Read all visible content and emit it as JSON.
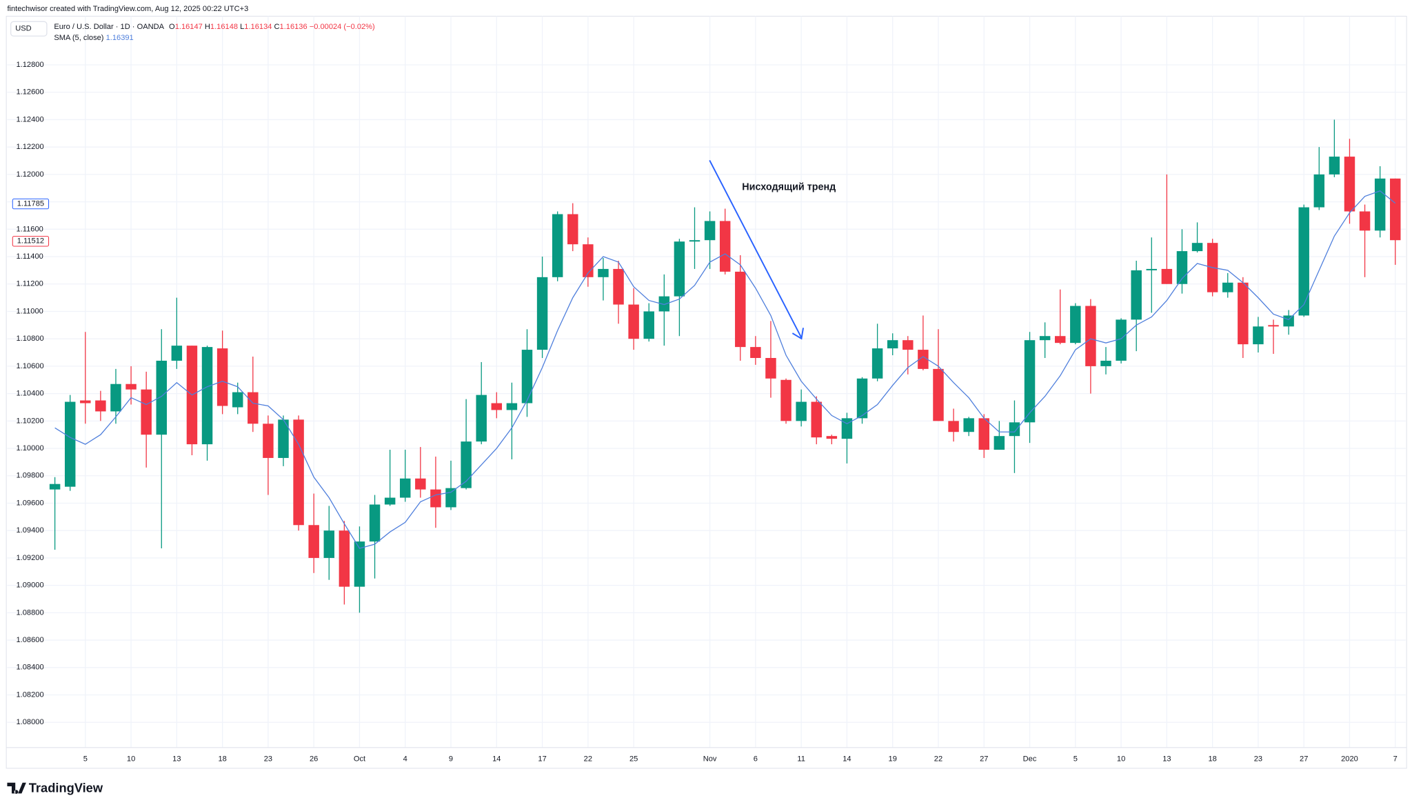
{
  "header": {
    "credit": "fintechwisor created with TradingView.com, Aug 12, 2025 00:22 UTC+3",
    "currency": "USD",
    "symbol": "Euro / U.S. Dollar · 1D · OANDA",
    "ohlc": [
      {
        "key": "O",
        "value": "1.16147"
      },
      {
        "key": "H",
        "value": "1.16148"
      },
      {
        "key": "L",
        "value": "1.16134"
      },
      {
        "key": "C",
        "value": "1.16136"
      }
    ],
    "change": "−0.00024 (−0.02%)"
  },
  "chart_data": {
    "type": "candlestick",
    "annotation": "Нисходящий тренд",
    "categories": [
      null,
      null,
      "5",
      null,
      null,
      "10",
      null,
      null,
      "13",
      null,
      null,
      "18",
      null,
      null,
      "23",
      null,
      null,
      "26",
      null,
      null,
      "Oct",
      null,
      null,
      "4",
      null,
      null,
      "9",
      null,
      null,
      "14",
      null,
      null,
      "17",
      null,
      null,
      "22",
      null,
      null,
      "25",
      null,
      null,
      null,
      null,
      "Nov",
      null,
      null,
      "6",
      null,
      null,
      "11",
      null,
      null,
      "14",
      null,
      null,
      "19",
      null,
      null,
      "22",
      null,
      null,
      "27",
      null,
      null,
      "Dec",
      null,
      null,
      "5",
      null,
      null,
      "10",
      null,
      null,
      "13",
      null,
      null,
      "18",
      null,
      null,
      "23",
      null,
      null,
      "27",
      null,
      null,
      "2020",
      null,
      null,
      "7"
    ],
    "open": [
      1.097,
      1.0972,
      1.1035,
      1.1035,
      1.1027,
      1.1047,
      1.1043,
      1.101,
      1.1064,
      1.1075,
      1.1003,
      1.1073,
      1.103,
      1.1041,
      1.1018,
      1.0993,
      1.1021,
      1.0944,
      1.092,
      1.094,
      1.0899,
      1.0932,
      1.0959,
      1.0964,
      1.0978,
      1.097,
      1.0957,
      1.0971,
      1.1005,
      1.1033,
      1.1028,
      1.1033,
      1.1072,
      1.1125,
      1.1171,
      1.1149,
      1.1125,
      1.1131,
      1.1105,
      1.108,
      1.11,
      1.1111,
      1.1151,
      1.1152,
      1.1166,
      1.1129,
      1.1074,
      1.1066,
      1.105,
      1.102,
      1.1034,
      1.1009,
      1.1007,
      1.1022,
      1.1051,
      1.1073,
      1.1079,
      1.1072,
      1.1058,
      1.102,
      1.1012,
      1.1022,
      1.0999,
      1.1009,
      1.1019,
      1.1079,
      1.1082,
      1.1077,
      1.1104,
      1.106,
      1.1064,
      1.1094,
      1.113,
      1.1131,
      1.112,
      1.1144,
      1.115,
      1.1114,
      1.1121,
      1.1076,
      1.109,
      1.1089,
      1.1097,
      1.1176,
      1.12,
      1.1213,
      1.1173,
      1.1159,
      1.1197
    ],
    "high": [
      1.0979,
      1.1039,
      1.1085,
      1.1042,
      1.1058,
      1.106,
      1.1056,
      1.1087,
      1.111,
      1.1075,
      1.1075,
      1.1086,
      1.1048,
      1.1067,
      1.1024,
      1.1024,
      1.1024,
      1.0967,
      1.0958,
      1.0947,
      1.0943,
      1.0966,
      1.0999,
      1.0999,
      1.1001,
      1.0994,
      1.0991,
      1.1036,
      1.1063,
      1.1041,
      1.1048,
      1.1087,
      1.114,
      1.1173,
      1.1179,
      1.1154,
      1.1139,
      1.1137,
      1.1117,
      1.1106,
      1.1127,
      1.1153,
      1.1176,
      1.1173,
      1.1175,
      1.1141,
      1.1082,
      1.1093,
      1.1051,
      1.1043,
      1.1038,
      1.101,
      1.1026,
      1.1052,
      1.1091,
      1.1084,
      1.1082,
      1.1097,
      1.1087,
      1.1029,
      1.1023,
      1.1025,
      1.102,
      1.1035,
      1.1085,
      1.1092,
      1.1116,
      1.1106,
      1.1109,
      1.1074,
      1.1095,
      1.1137,
      1.1154,
      1.12,
      1.116,
      1.1165,
      1.1153,
      1.1128,
      1.1125,
      1.1096,
      1.1094,
      1.1101,
      1.1178,
      1.122,
      1.124,
      1.1226,
      1.1178,
      1.1206,
      1.1197
    ],
    "low": [
      1.0926,
      1.0969,
      1.1018,
      1.102,
      1.1018,
      1.1032,
      1.0986,
      1.0927,
      1.1058,
      1.0995,
      1.0991,
      1.1025,
      1.1025,
      1.1012,
      1.0966,
      1.0987,
      1.094,
      1.0909,
      1.0904,
      1.0886,
      1.088,
      1.0905,
      1.0958,
      1.0961,
      1.0964,
      1.0942,
      1.0955,
      1.097,
      1.1003,
      1.1022,
      1.0992,
      1.1023,
      1.1066,
      1.1122,
      1.1144,
      1.1118,
      1.1108,
      1.1091,
      1.1072,
      1.1078,
      1.1075,
      1.1082,
      1.1131,
      1.1131,
      1.1127,
      1.1064,
      1.1061,
      1.1037,
      1.1018,
      1.1016,
      1.1003,
      1.1003,
      1.0989,
      1.1018,
      1.1049,
      1.1068,
      1.1054,
      1.1057,
      1.102,
      1.1005,
      1.1009,
      1.0993,
      1.0999,
      1.0982,
      1.1004,
      1.1066,
      1.1076,
      1.1076,
      1.104,
      1.1054,
      1.1062,
      1.1071,
      1.1099,
      1.112,
      1.1113,
      1.1143,
      1.1111,
      1.111,
      1.1066,
      1.107,
      1.1069,
      1.1083,
      1.1096,
      1.1174,
      1.1198,
      1.1164,
      1.1125,
      1.1154,
      1.1134
    ],
    "close": [
      1.0974,
      1.1034,
      1.1033,
      1.1027,
      1.1047,
      1.1043,
      1.101,
      1.1064,
      1.1075,
      1.1003,
      1.1074,
      1.1031,
      1.1041,
      1.1018,
      1.0993,
      1.1021,
      1.0944,
      1.092,
      1.094,
      1.0899,
      1.0932,
      1.0959,
      1.0964,
      1.0978,
      1.097,
      1.0957,
      1.0971,
      1.1005,
      1.1039,
      1.1028,
      1.1033,
      1.1072,
      1.1125,
      1.1171,
      1.1149,
      1.1125,
      1.1131,
      1.1105,
      1.108,
      1.11,
      1.1111,
      1.1151,
      1.1152,
      1.1166,
      1.1129,
      1.1074,
      1.1066,
      1.1051,
      1.102,
      1.1034,
      1.1008,
      1.1007,
      1.1022,
      1.1051,
      1.1073,
      1.1079,
      1.1072,
      1.1058,
      1.102,
      1.1012,
      1.1022,
      1.0999,
      1.1009,
      1.1019,
      1.1079,
      1.1082,
      1.1077,
      1.1104,
      1.106,
      1.1064,
      1.1094,
      1.113,
      1.1131,
      1.112,
      1.1144,
      1.115,
      1.1114,
      1.1121,
      1.1076,
      1.1089,
      1.1089,
      1.1097,
      1.1176,
      1.12,
      1.1213,
      1.1173,
      1.1159,
      1.1197,
      1.1152
    ],
    "up_color": "#089981",
    "down_color": "#f23645",
    "overlays": [
      {
        "name": "SMA (5, close)",
        "last": "1.16391",
        "color": "#4f7fdc",
        "values": [
          1.1015,
          1.1008,
          1.1003,
          1.101,
          1.1023,
          1.1037,
          1.1032,
          1.1038,
          1.1048,
          1.1039,
          1.1045,
          1.1049,
          1.1045,
          1.1033,
          1.1031,
          1.1021,
          1.1003,
          1.0979,
          1.0964,
          1.0945,
          1.0927,
          1.093,
          1.0939,
          1.0946,
          1.0961,
          1.0966,
          1.0968,
          1.0976,
          1.0988,
          1.1,
          1.1015,
          1.1035,
          1.1059,
          1.1086,
          1.111,
          1.1128,
          1.114,
          1.1136,
          1.1118,
          1.1108,
          1.1105,
          1.1109,
          1.1119,
          1.1136,
          1.1142,
          1.1134,
          1.1117,
          1.1097,
          1.1068,
          1.1049,
          1.1036,
          1.1024,
          1.1018,
          1.1024,
          1.1032,
          1.1046,
          1.1059,
          1.1067,
          1.106,
          1.1048,
          1.1037,
          1.1022,
          1.1012,
          1.1012,
          1.1026,
          1.1038,
          1.1053,
          1.1072,
          1.108,
          1.1077,
          1.108,
          1.109,
          1.1096,
          1.1108,
          1.1124,
          1.1135,
          1.1132,
          1.113,
          1.1121,
          1.111,
          1.1098,
          1.1094,
          1.1105,
          1.113,
          1.1155,
          1.1172,
          1.1184,
          1.1188,
          1.1179
        ]
      }
    ],
    "price_markers": [
      {
        "value": 1.11785,
        "color": "#2962ff"
      },
      {
        "value": 1.11512,
        "color": "#f23645"
      }
    ],
    "ylim": [
      1.07842,
      1.13142
    ],
    "yticks": [
      {
        "value": 1.08,
        "label": "1.08000"
      },
      {
        "value": 1.082,
        "label": "1.08200"
      },
      {
        "value": 1.084,
        "label": "1.08400"
      },
      {
        "value": 1.086,
        "label": "1.08600"
      },
      {
        "value": 1.088,
        "label": "1.08800"
      },
      {
        "value": 1.09,
        "label": "1.09000"
      },
      {
        "value": 1.092,
        "label": "1.09200"
      },
      {
        "value": 1.094,
        "label": "1.09400"
      },
      {
        "value": 1.096,
        "label": "1.09600"
      },
      {
        "value": 1.098,
        "label": "1.09800"
      },
      {
        "value": 1.1,
        "label": "1.10000"
      },
      {
        "value": 1.102,
        "label": "1.10200"
      },
      {
        "value": 1.104,
        "label": "1.10400"
      },
      {
        "value": 1.106,
        "label": "1.10600"
      },
      {
        "value": 1.108,
        "label": "1.10800"
      },
      {
        "value": 1.11,
        "label": "1.11000"
      },
      {
        "value": 1.112,
        "label": "1.11200"
      },
      {
        "value": 1.114,
        "label": "1.11400"
      },
      {
        "value": 1.116,
        "label": "1.11600"
      },
      {
        "value": 1.118,
        "label": "1.11800"
      },
      {
        "value": 1.12,
        "label": "1.12000"
      },
      {
        "value": 1.122,
        "label": "1.12200"
      },
      {
        "value": 1.124,
        "label": "1.12400"
      },
      {
        "value": 1.126,
        "label": "1.12600"
      },
      {
        "value": 1.128,
        "label": "1.12800"
      }
    ],
    "grid": true
  },
  "footer": {
    "brand": "TradingView"
  }
}
